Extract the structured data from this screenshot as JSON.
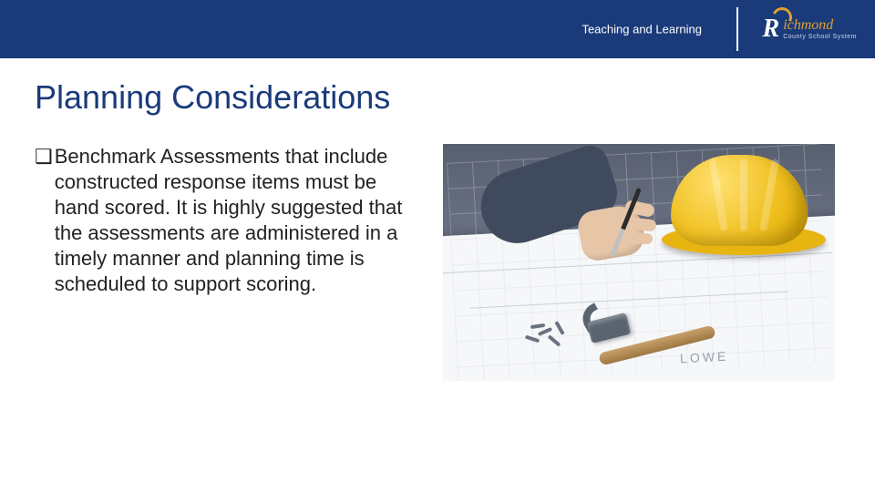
{
  "header": {
    "label": "Teaching and Learning",
    "logo": {
      "main": "ichmond",
      "sub": "County School System"
    },
    "background_color": "#1a3a7a",
    "accent_color": "#e0a030"
  },
  "slide": {
    "title": "Planning Considerations",
    "title_color": "#1a3a7a",
    "title_fontsize": 36,
    "bullets": [
      {
        "marker": "❑",
        "text": "Benchmark Assessments that include constructed response items must be hand scored.  It is highly suggested that the assessments are administered in a timely manner and planning time is scheduled to support scoring."
      }
    ],
    "body_fontsize": 22,
    "body_color": "#222222"
  },
  "image": {
    "description": "construction-planning-photo",
    "paper_caption": "LOWE",
    "hardhat_color": "#f0c020",
    "blueprint_bg": "#f6f7f9",
    "hammer_handle_color": "#caa06a",
    "hammer_head_color": "#5a6370"
  }
}
